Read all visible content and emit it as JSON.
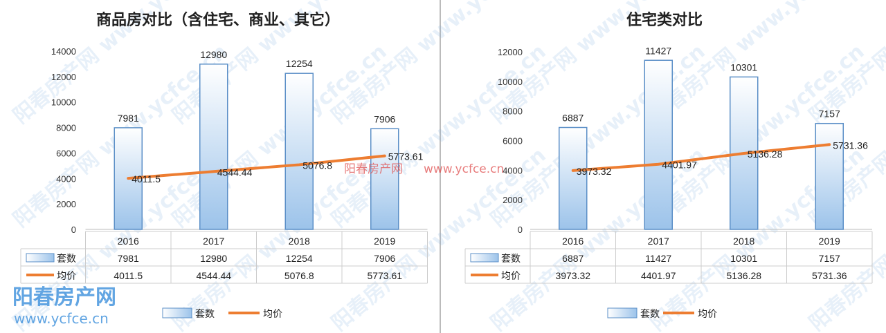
{
  "watermark": {
    "brand": "阳春房产网",
    "url": "www.ycfce.cn",
    "brand_color": "#3b8fdc",
    "center_color": "#e05050"
  },
  "colors": {
    "bar_stroke": "#5b8fc7",
    "bar_fill_top": "#ffffff",
    "bar_fill_bottom": "#9cc3ea",
    "line": "#ed7d31"
  },
  "chart_data": [
    {
      "type": "bar+line",
      "title": "商品房对比（含住宅、商业、其它）",
      "categories": [
        "2016",
        "2017",
        "2018",
        "2019"
      ],
      "series": [
        {
          "name": "套数",
          "type": "bar",
          "values": [
            7981,
            12980,
            12254,
            7906
          ],
          "labels": [
            "7981",
            "12980",
            "12254",
            "7906"
          ]
        },
        {
          "name": "均价",
          "type": "line",
          "values": [
            4011.5,
            4544.44,
            5076.8,
            5773.61
          ],
          "labels": [
            "4011.5",
            "4544.44",
            "5076.8",
            "5773.61"
          ]
        }
      ],
      "ylim": [
        0,
        14000
      ],
      "yticks": [
        "0",
        "2000",
        "4000",
        "6000",
        "8000",
        "10000",
        "12000",
        "14000"
      ],
      "grid": false,
      "legend": "bottom",
      "data_table": true
    },
    {
      "type": "bar+line",
      "title": "住宅类对比",
      "categories": [
        "2016",
        "2017",
        "2018",
        "2019"
      ],
      "series": [
        {
          "name": "套数",
          "type": "bar",
          "values": [
            6887,
            11427,
            10301,
            7157
          ],
          "labels": [
            "6887",
            "11427",
            "10301",
            "7157"
          ]
        },
        {
          "name": "均价",
          "type": "line",
          "values": [
            3973.32,
            4401.97,
            5136.28,
            5731.36
          ],
          "labels": [
            "3973.32",
            "4401.97",
            "5136.28",
            "5731.36"
          ]
        }
      ],
      "ylim": [
        0,
        12000
      ],
      "yticks": [
        "0",
        "2000",
        "4000",
        "6000",
        "8000",
        "10000",
        "12000"
      ],
      "grid": false,
      "legend": "bottom",
      "data_table": true
    }
  ]
}
